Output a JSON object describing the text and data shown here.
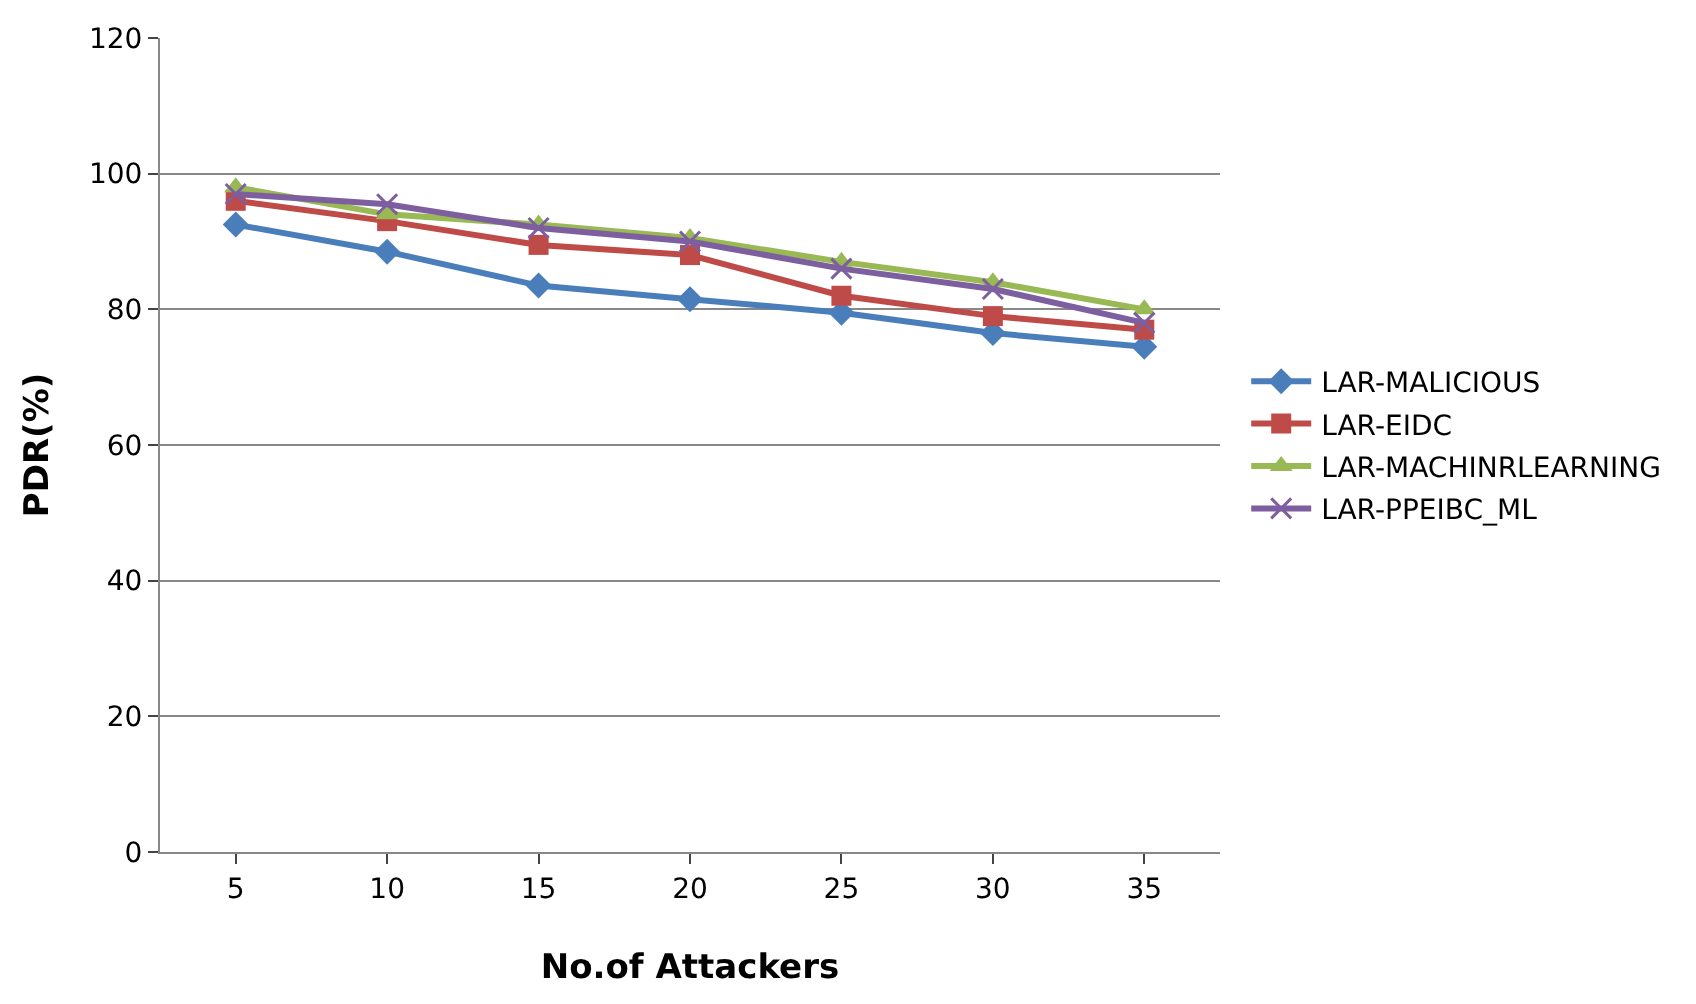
{
  "chart_data": {
    "type": "line",
    "xlabel": "No.of Attackers",
    "ylabel": "PDR(%)",
    "categories": [
      "5",
      "10",
      "15",
      "20",
      "25",
      "30",
      "35"
    ],
    "series": [
      {
        "name": "LAR-MALICIOUS",
        "color": "#4a7ebb",
        "marker": "diamond",
        "values": [
          92.5,
          88.5,
          83.5,
          81.5,
          79.5,
          76.5,
          74.5
        ]
      },
      {
        "name": "LAR-EIDC",
        "color": "#be4b48",
        "marker": "square",
        "values": [
          96,
          93,
          89.5,
          88,
          82,
          79,
          77
        ]
      },
      {
        "name": "LAR-MACHINRLEARNING",
        "color": "#98b954",
        "marker": "triangle",
        "values": [
          98,
          94,
          92.5,
          90.5,
          87,
          84,
          80
        ]
      },
      {
        "name": "LAR-PPEIBC_ML",
        "color": "#7d5fa0",
        "marker": "cross",
        "values": [
          97,
          95.5,
          92,
          90,
          86,
          83,
          78
        ]
      }
    ],
    "ylim": [
      0,
      120
    ],
    "yticks": [
      0,
      20,
      40,
      60,
      80,
      100,
      120
    ],
    "grid": "y",
    "legend": "right"
  }
}
